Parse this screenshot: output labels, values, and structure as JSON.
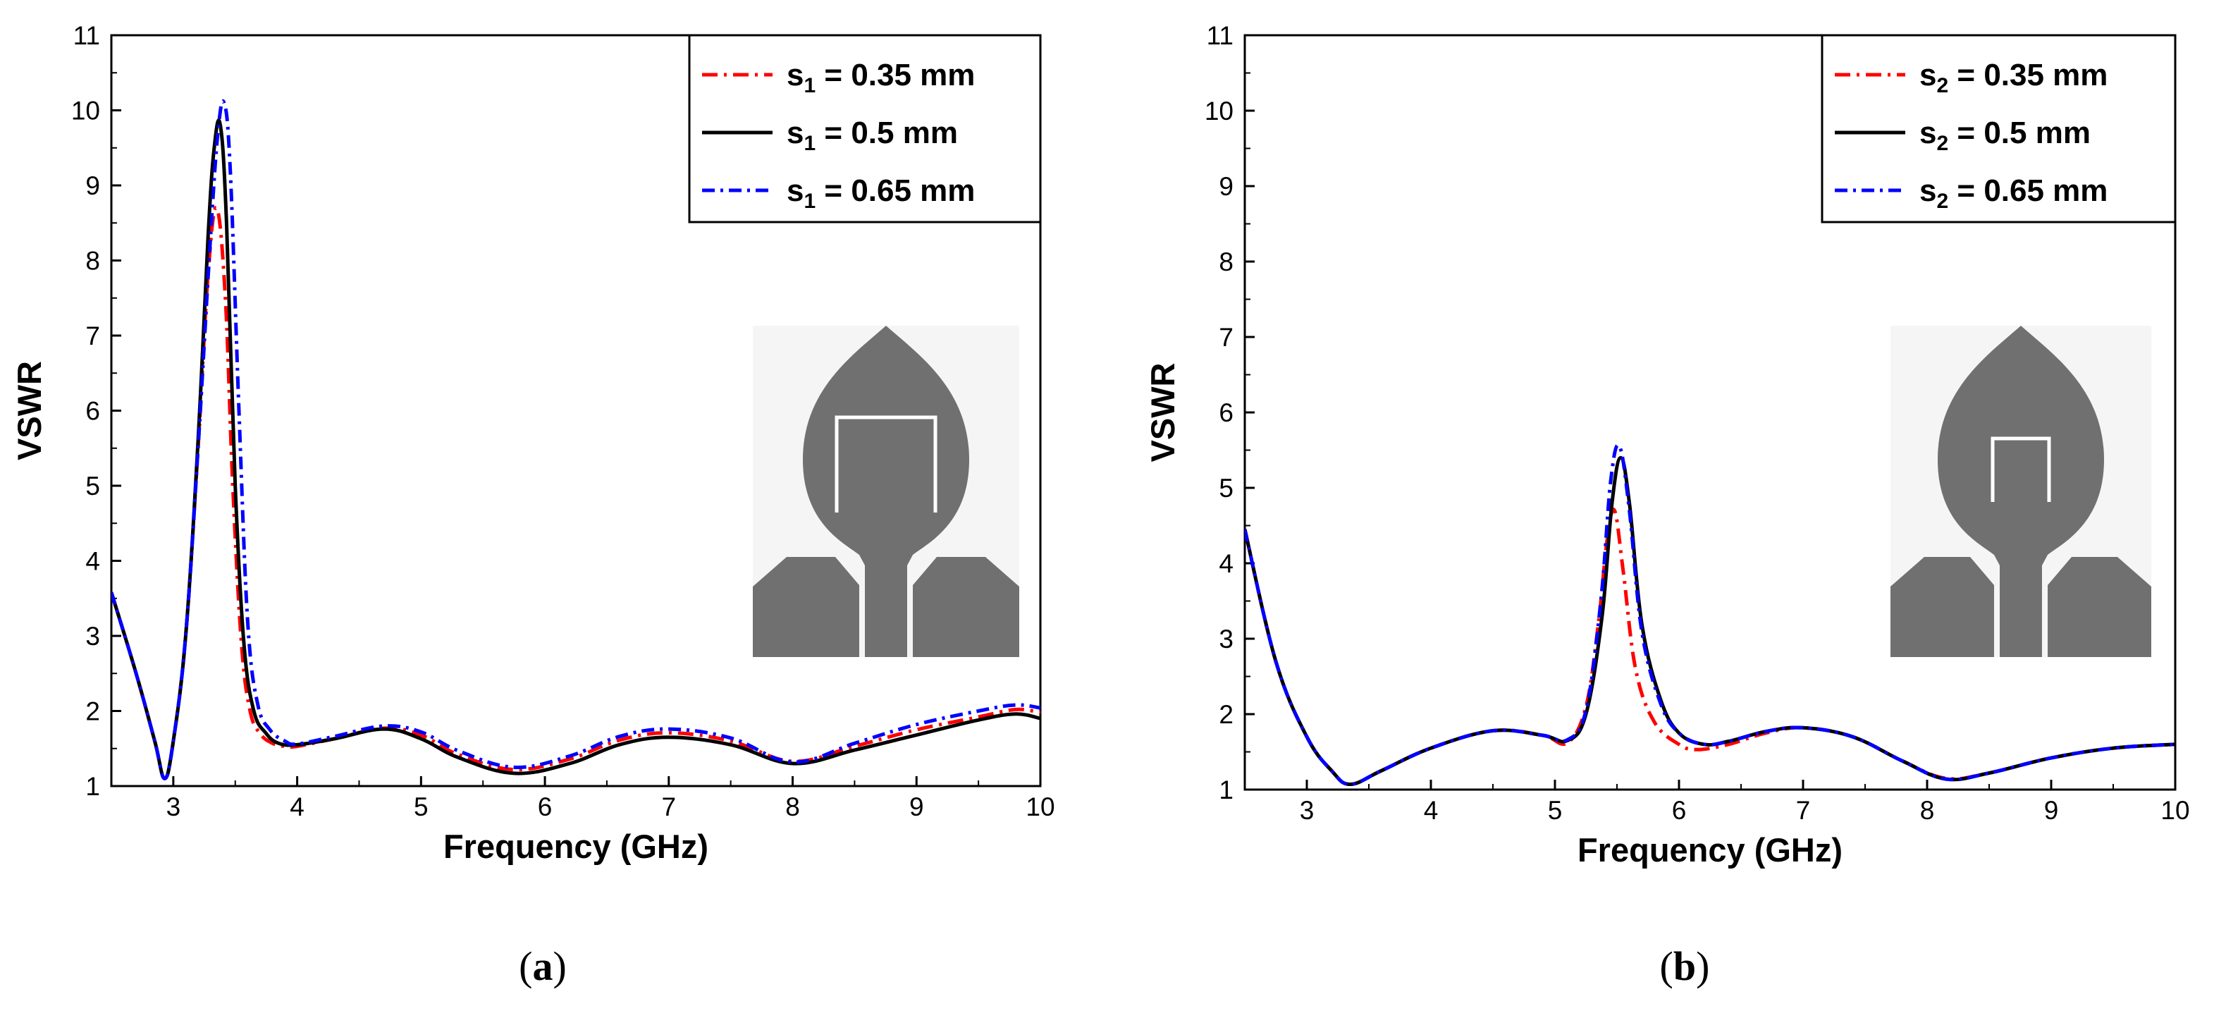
{
  "colors": {
    "red": "#ff0000",
    "black": "#000000",
    "blue": "#0000ff",
    "inset_fill": "#707070",
    "inset_bg": "#f5f5f5"
  },
  "chart_data": [
    {
      "type": "line",
      "caption": "a",
      "xlabel": "Frequency (GHz)",
      "ylabel": "VSWR",
      "xlim": [
        2.5,
        10
      ],
      "ylim": [
        1,
        11
      ],
      "xticks": [
        "3",
        "4",
        "5",
        "6",
        "7",
        "8",
        "9",
        "10"
      ],
      "yticks": [
        "1",
        "2",
        "3",
        "4",
        "5",
        "6",
        "7",
        "8",
        "9",
        "10",
        "11"
      ],
      "legend_position": "top-right",
      "inset": "u-slot",
      "series": [
        {
          "name": "s1 = 0.35 mm",
          "sym": "s",
          "sub": "1",
          "rest": " = 0.35 mm",
          "color": "#ff0000",
          "dash": "22,9,4,9",
          "x": [
            2.5,
            2.7,
            2.85,
            2.93,
            3.0,
            3.1,
            3.2,
            3.28,
            3.35,
            3.42,
            3.48,
            3.55,
            3.62,
            3.7,
            3.8,
            3.9,
            4.0,
            4.3,
            4.7,
            5.0,
            5.3,
            5.75,
            6.2,
            6.6,
            7.0,
            7.5,
            8.0,
            8.5,
            9.0,
            9.5,
            9.8,
            10.0
          ],
          "y": [
            3.58,
            2.5,
            1.6,
            1.1,
            1.6,
            3.0,
            5.5,
            7.8,
            8.7,
            7.5,
            5.0,
            2.9,
            2.0,
            1.7,
            1.57,
            1.53,
            1.53,
            1.63,
            1.77,
            1.68,
            1.42,
            1.22,
            1.36,
            1.61,
            1.71,
            1.6,
            1.33,
            1.53,
            1.75,
            1.92,
            2.02,
            1.98
          ]
        },
        {
          "name": "s1 = 0.5 mm",
          "sym": "s",
          "sub": "1",
          "rest": " = 0.5 mm",
          "color": "#000000",
          "dash": "",
          "x": [
            2.5,
            2.7,
            2.85,
            2.93,
            3.0,
            3.1,
            3.2,
            3.28,
            3.33,
            3.38,
            3.43,
            3.5,
            3.57,
            3.65,
            3.75,
            3.85,
            4.0,
            4.3,
            4.7,
            5.0,
            5.3,
            5.75,
            6.2,
            6.6,
            7.0,
            7.5,
            8.0,
            8.5,
            9.0,
            9.5,
            9.8,
            10.0
          ],
          "y": [
            3.58,
            2.5,
            1.6,
            1.1,
            1.6,
            3.0,
            5.6,
            8.3,
            9.5,
            9.8,
            8.5,
            5.0,
            2.9,
            2.0,
            1.7,
            1.57,
            1.55,
            1.63,
            1.76,
            1.63,
            1.38,
            1.17,
            1.3,
            1.55,
            1.65,
            1.55,
            1.3,
            1.48,
            1.68,
            1.88,
            1.96,
            1.9
          ]
        },
        {
          "name": "s1 = 0.65 mm",
          "sym": "s",
          "sub": "1",
          "rest": " = 0.65 mm",
          "color": "#0000ff",
          "dash": "18,8,4,8",
          "x": [
            2.5,
            2.7,
            2.85,
            2.93,
            3.0,
            3.1,
            3.2,
            3.3,
            3.36,
            3.41,
            3.46,
            3.53,
            3.6,
            3.68,
            3.78,
            3.9,
            4.0,
            4.3,
            4.7,
            5.0,
            5.3,
            5.75,
            6.2,
            6.6,
            7.0,
            7.5,
            8.0,
            8.5,
            9.0,
            9.5,
            9.8,
            10.0
          ],
          "y": [
            3.58,
            2.5,
            1.6,
            1.1,
            1.6,
            3.0,
            5.5,
            8.3,
            9.7,
            10.1,
            9.2,
            6.0,
            3.2,
            2.1,
            1.75,
            1.6,
            1.56,
            1.66,
            1.8,
            1.72,
            1.47,
            1.25,
            1.4,
            1.66,
            1.76,
            1.64,
            1.32,
            1.57,
            1.82,
            2.0,
            2.08,
            2.04
          ]
        }
      ]
    },
    {
      "type": "line",
      "caption": "b",
      "xlabel": "Frequency (GHz)",
      "ylabel": "VSWR",
      "xlim": [
        2.5,
        10
      ],
      "ylim": [
        1,
        11
      ],
      "xticks": [
        "3",
        "4",
        "5",
        "6",
        "7",
        "8",
        "9",
        "10"
      ],
      "yticks": [
        "1",
        "2",
        "3",
        "4",
        "5",
        "6",
        "7",
        "8",
        "9",
        "10",
        "11"
      ],
      "legend_position": "top-right",
      "inset": "u-slot",
      "series": [
        {
          "name": "s2 = 0.35 mm",
          "sym": "s",
          "sub": "2",
          "rest": " = 0.35 mm",
          "color": "#ff0000",
          "dash": "22,9,4,9",
          "x": [
            2.5,
            2.75,
            3.0,
            3.2,
            3.35,
            3.6,
            4.0,
            4.5,
            4.9,
            5.1,
            5.25,
            5.35,
            5.42,
            5.48,
            5.55,
            5.65,
            5.8,
            6.0,
            6.15,
            6.4,
            6.7,
            7.0,
            7.4,
            7.8,
            8.15,
            8.5,
            9.0,
            9.5,
            10.0
          ],
          "y": [
            4.45,
            2.7,
            1.7,
            1.25,
            1.07,
            1.25,
            1.55,
            1.78,
            1.72,
            1.62,
            2.1,
            3.2,
            4.3,
            4.7,
            3.9,
            2.6,
            1.9,
            1.6,
            1.53,
            1.6,
            1.75,
            1.82,
            1.7,
            1.38,
            1.15,
            1.22,
            1.42,
            1.55,
            1.6
          ]
        },
        {
          "name": "s2 = 0.5 mm",
          "sym": "s",
          "sub": "2",
          "rest": " = 0.5 mm",
          "color": "#000000",
          "dash": "",
          "x": [
            2.5,
            2.75,
            3.0,
            3.2,
            3.35,
            3.6,
            4.0,
            4.5,
            4.9,
            5.1,
            5.25,
            5.38,
            5.46,
            5.53,
            5.6,
            5.7,
            5.85,
            6.0,
            6.2,
            6.4,
            6.7,
            7.0,
            7.4,
            7.8,
            8.15,
            8.5,
            9.0,
            9.5,
            10.0
          ],
          "y": [
            4.45,
            2.7,
            1.7,
            1.25,
            1.07,
            1.25,
            1.55,
            1.78,
            1.72,
            1.65,
            2.0,
            3.3,
            4.8,
            5.4,
            4.8,
            3.2,
            2.2,
            1.75,
            1.6,
            1.64,
            1.77,
            1.82,
            1.7,
            1.38,
            1.14,
            1.22,
            1.42,
            1.55,
            1.6
          ]
        },
        {
          "name": "s2 = 0.65 mm",
          "sym": "s",
          "sub": "2",
          "rest": " = 0.65 mm",
          "color": "#0000ff",
          "dash": "18,8,4,8",
          "x": [
            2.5,
            2.75,
            3.0,
            3.2,
            3.35,
            3.6,
            4.0,
            4.5,
            4.9,
            5.1,
            5.25,
            5.37,
            5.45,
            5.52,
            5.6,
            5.7,
            5.85,
            6.0,
            6.2,
            6.4,
            6.7,
            7.0,
            7.4,
            7.8,
            8.15,
            8.5,
            9.0,
            9.5,
            10.0
          ],
          "y": [
            4.45,
            2.7,
            1.7,
            1.25,
            1.07,
            1.25,
            1.55,
            1.78,
            1.72,
            1.66,
            2.05,
            3.5,
            5.1,
            5.55,
            4.7,
            3.1,
            2.15,
            1.75,
            1.6,
            1.64,
            1.77,
            1.82,
            1.7,
            1.38,
            1.14,
            1.22,
            1.42,
            1.55,
            1.6
          ]
        }
      ]
    }
  ]
}
